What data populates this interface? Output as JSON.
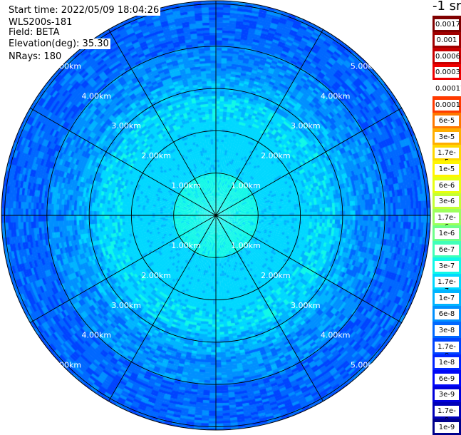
{
  "header": {
    "start_time": "Start time: 2022/05/09 18:04:26",
    "instrument": "WLS200s-181",
    "field": "Field: BETA",
    "elevation": "Elevation(deg): 35.30",
    "nrays": "NRays: 180"
  },
  "colorbar": {
    "unit_label": "-1 sr",
    "labels_top_to_bottom": [
      "0.0017",
      "0.001",
      "0.0006",
      "0.0003",
      "0.00017",
      "0.0001",
      "6e-5",
      "3e-5",
      "1.7e-5",
      "1e-5",
      "6e-6",
      "3e-6",
      "1.7e-6",
      "1e-6",
      "6e-7",
      "3e-7",
      "1.7e-7",
      "1e-7",
      "6e-8",
      "3e-8",
      "1.7e-8",
      "1e-8",
      "6e-9",
      "3e-9",
      "1.7e-9",
      "1e-9"
    ],
    "colors_top_to_bottom": [
      "#800000",
      "#a00000",
      "#c80000",
      "#ee0000",
      "#ffffff",
      "#ff3a00",
      "#ff7800",
      "#ffae00",
      "#ffd800",
      "#fff500",
      "#e8ff10",
      "#c4ff34",
      "#9cff5c",
      "#6eff8a",
      "#40ffb8",
      "#10f8e8",
      "#00d8ff",
      "#00b4ff",
      "#0090ff",
      "#0068ff",
      "#0044ff",
      "#0024ff",
      "#0008f8",
      "#0000dc",
      "#0000b8",
      "#00008c"
    ]
  },
  "chart_data": {
    "type": "heatmap",
    "projection": "polar",
    "title": "",
    "field": "BETA",
    "elevation_deg": 35.3,
    "nrays": 180,
    "range_unit": "km",
    "range_rings_km": [
      1,
      2,
      3,
      4,
      5
    ],
    "ring_labels": [
      "1.00km",
      "2.00km",
      "3.00km",
      "4.00km",
      "5.00km"
    ],
    "max_range_km": 6.2,
    "radial_spokes_deg": [
      0,
      30,
      60,
      90,
      120,
      150,
      180,
      210,
      240,
      270,
      300,
      330
    ],
    "value_profile_by_range": [
      {
        "range_km": 0.0,
        "beta": "3e-7"
      },
      {
        "range_km": 1.0,
        "beta": "1.7e-7"
      },
      {
        "range_km": 2.0,
        "beta": "1.7e-7"
      },
      {
        "range_km": 2.8,
        "beta": "1e-7"
      },
      {
        "range_km": 3.3,
        "beta": "6e-8"
      },
      {
        "range_km": 4.0,
        "beta": "3e-8"
      },
      {
        "range_km": 5.0,
        "beta": "3e-8"
      },
      {
        "range_km": 6.0,
        "beta": "1.7e-8"
      }
    ]
  }
}
